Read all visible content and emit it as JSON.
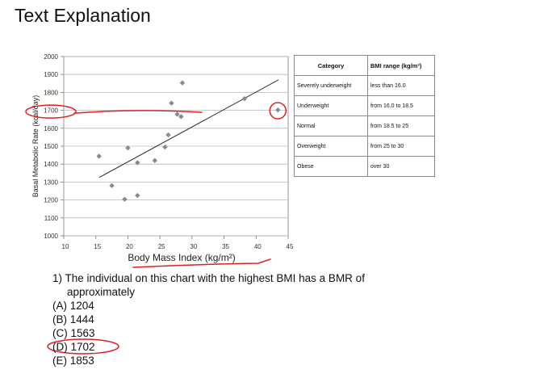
{
  "page": {
    "title": "Text Explanation"
  },
  "chart_data": {
    "type": "scatter",
    "title": "",
    "xlabel": "Body Mass Index (kg/m²)",
    "ylabel": "Basal Metabolic Rate (kcal/day)",
    "xlim": [
      10,
      45
    ],
    "ylim": [
      1000,
      2000
    ],
    "xticks": [
      "10",
      "15",
      "20",
      "25",
      "30",
      "35",
      "40",
      "45"
    ],
    "yticks": [
      "1000",
      "1100",
      "1200",
      "1300",
      "1400",
      "1500",
      "1600",
      "1700",
      "1800",
      "1900",
      "2000"
    ],
    "grid": true,
    "points": [
      {
        "x": 15.5,
        "y": 1444
      },
      {
        "x": 17.5,
        "y": 1280
      },
      {
        "x": 19.5,
        "y": 1204
      },
      {
        "x": 20.0,
        "y": 1490
      },
      {
        "x": 21.5,
        "y": 1408
      },
      {
        "x": 21.5,
        "y": 1225
      },
      {
        "x": 24.2,
        "y": 1420
      },
      {
        "x": 25.8,
        "y": 1495
      },
      {
        "x": 26.3,
        "y": 1563
      },
      {
        "x": 26.8,
        "y": 1740
      },
      {
        "x": 27.7,
        "y": 1678
      },
      {
        "x": 28.3,
        "y": 1665
      },
      {
        "x": 28.5,
        "y": 1853
      },
      {
        "x": 38.2,
        "y": 1765
      },
      {
        "x": 43.4,
        "y": 1702
      }
    ],
    "trendline": {
      "x": [
        15.5,
        43.5
      ],
      "y": [
        1325,
        1870
      ]
    },
    "marker_color": "#7f8c99",
    "annotation_color": "#e02020"
  },
  "table": {
    "headers": [
      "Category",
      "BMI range (kg/m²)"
    ],
    "rows": [
      [
        "Severely underweight",
        "less than 16.0"
      ],
      [
        "Underweight",
        "from 16.0 to 18.5"
      ],
      [
        "Normal",
        "from 18.5 to 25"
      ],
      [
        "Overweight",
        "from 25 to 30"
      ],
      [
        "Obese",
        "over 30"
      ]
    ]
  },
  "question": {
    "line1": "1) The individual on this chart with the highest BMI has a BMR of",
    "line2": "approximately",
    "options": [
      "(A) 1204",
      "(B) 1444",
      "(C) 1563",
      "(D) 1702",
      "(E) 1853"
    ]
  }
}
